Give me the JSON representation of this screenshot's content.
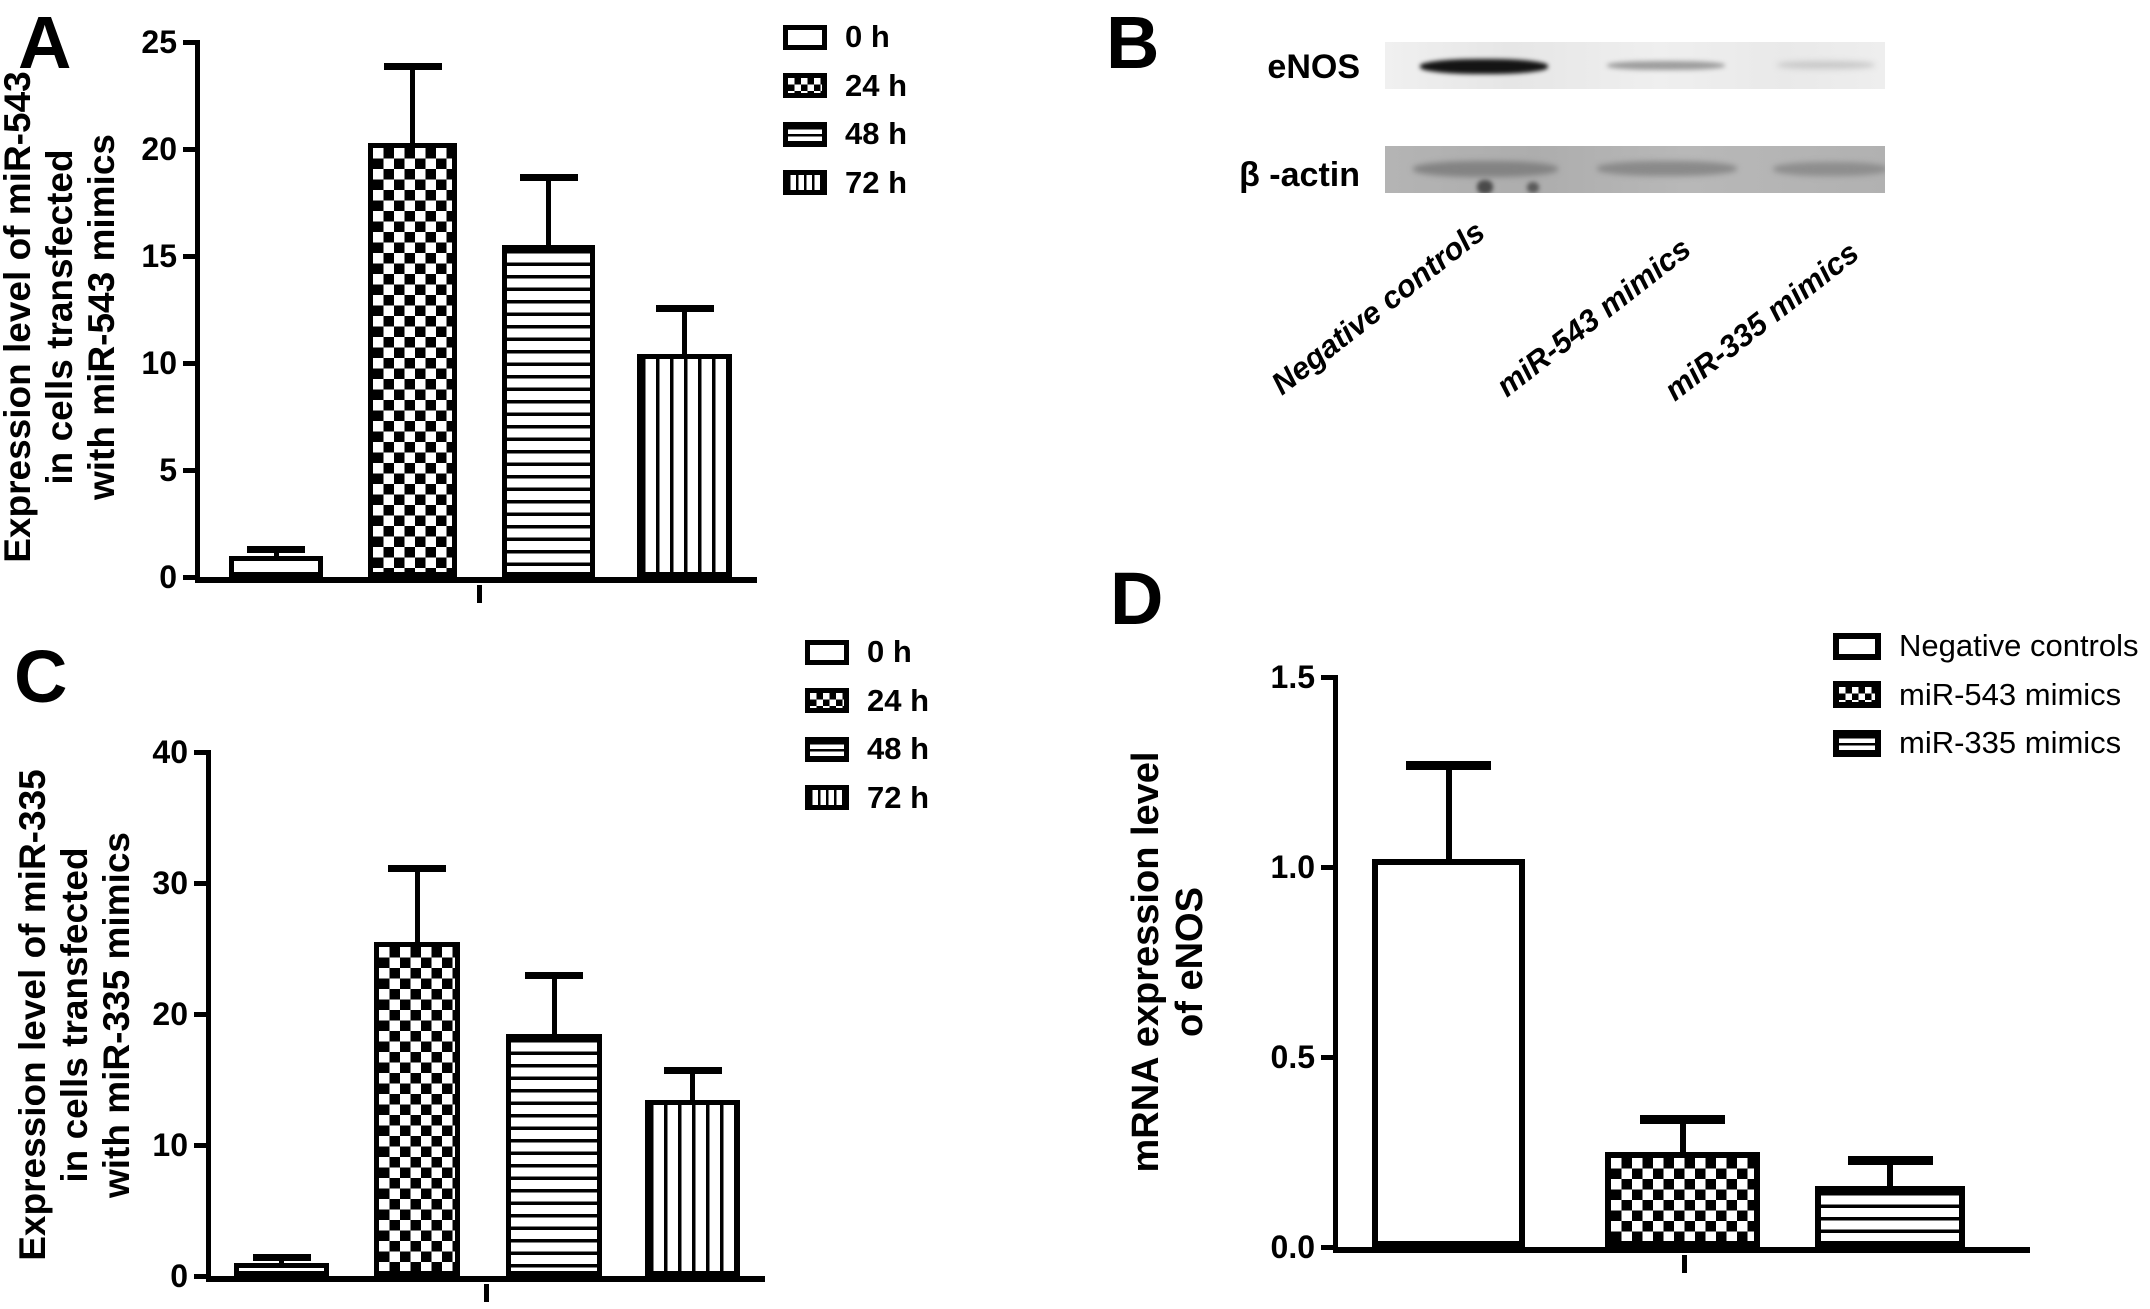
{
  "figure": {
    "background": "#ffffff",
    "ink": "#000000"
  },
  "panels": {
    "a": {
      "letter": "A",
      "ylabel_lines": [
        "Expression level of miR-543",
        "in cells transfected",
        "with miR-543 mimics"
      ],
      "ytick_labels": [
        "0",
        "5",
        "10",
        "15",
        "20",
        "25"
      ],
      "legend": [
        {
          "pattern": "solid",
          "label": "0 h"
        },
        {
          "pattern": "checker",
          "label": "24 h"
        },
        {
          "pattern": "hlines",
          "label": "48 h"
        },
        {
          "pattern": "vlines",
          "label": "72 h"
        }
      ]
    },
    "b": {
      "letter": "B",
      "row_labels": [
        "eNOS",
        "β -actin"
      ],
      "lane_labels": [
        "Negative controls",
        "miR-543 mimics",
        "miR-335 mimics"
      ]
    },
    "c": {
      "letter": "C",
      "ylabel_lines": [
        "Expression level of miR-335",
        "in cells transfected",
        "with miR-335 mimics"
      ],
      "ytick_labels": [
        "0",
        "10",
        "20",
        "30",
        "40"
      ],
      "legend": [
        {
          "pattern": "solid",
          "label": "0 h"
        },
        {
          "pattern": "checker",
          "label": "24 h"
        },
        {
          "pattern": "hlines",
          "label": "48 h"
        },
        {
          "pattern": "vlines",
          "label": "72 h"
        }
      ]
    },
    "d": {
      "letter": "D",
      "ylabel_lines": [
        "mRNA expression level",
        "of eNOS"
      ],
      "ytick_labels": [
        "0.0",
        "0.5",
        "1.0",
        "1.5"
      ],
      "legend": [
        {
          "pattern": "solid",
          "label": "Negative controls"
        },
        {
          "pattern": "checker",
          "label": "miR-543 mimics"
        },
        {
          "pattern": "hlines",
          "label": "miR-335 mimics"
        }
      ]
    }
  },
  "chart_data": [
    {
      "id": "A",
      "type": "bar",
      "title": "",
      "categories": [
        "0 h",
        "24 h",
        "48 h",
        "72 h"
      ],
      "values": [
        1.0,
        20.3,
        15.5,
        10.4
      ],
      "errors_upper": [
        0.2,
        3.5,
        3.1,
        2.1
      ],
      "bar_patterns": [
        "solid",
        "checker",
        "hlines",
        "vlines"
      ],
      "xlabel": "",
      "ylabel": "Expression level of miR-543 in cells transfected with miR-543 mimics",
      "yticks": [
        0,
        5,
        10,
        15,
        20,
        25
      ],
      "ylim": [
        0,
        25
      ],
      "grid": false,
      "legend_position": "top-right"
    },
    {
      "id": "B",
      "type": "table",
      "title": "Western blot",
      "columns": [
        "Negative controls",
        "miR-543 mimics",
        "miR-335 mimics"
      ],
      "rows": [
        {
          "name": "eNOS",
          "band_intensity": [
            1.0,
            0.3,
            0.12
          ]
        },
        {
          "name": "β -actin",
          "band_intensity": [
            0.75,
            0.72,
            0.7
          ]
        }
      ]
    },
    {
      "id": "C",
      "type": "bar",
      "title": "",
      "categories": [
        "0 h",
        "24 h",
        "48 h",
        "72 h"
      ],
      "values": [
        1.0,
        25.5,
        18.5,
        13.4
      ],
      "errors_upper": [
        0.3,
        5.5,
        4.3,
        2.2
      ],
      "bar_patterns": [
        "solid",
        "checker",
        "hlines",
        "vlines"
      ],
      "xlabel": "",
      "ylabel": "Expression level of miR-335 in cells transfected with miR-335 mimics",
      "yticks": [
        0,
        10,
        20,
        30,
        40
      ],
      "ylim": [
        0,
        40
      ],
      "grid": false,
      "legend_position": "top-right"
    },
    {
      "id": "D",
      "type": "bar",
      "title": "",
      "categories": [
        "Negative controls",
        "miR-543 mimics",
        "miR-335 mimics"
      ],
      "values": [
        1.02,
        0.25,
        0.16
      ],
      "errors_upper": [
        0.24,
        0.08,
        0.06
      ],
      "bar_patterns": [
        "solid",
        "checker",
        "hlines"
      ],
      "xlabel": "",
      "ylabel": "mRNA expression level of eNOS",
      "yticks": [
        0,
        0.5,
        1.0,
        1.5
      ],
      "ylim": [
        0,
        1.5
      ],
      "grid": false,
      "legend_position": "top-right"
    }
  ]
}
